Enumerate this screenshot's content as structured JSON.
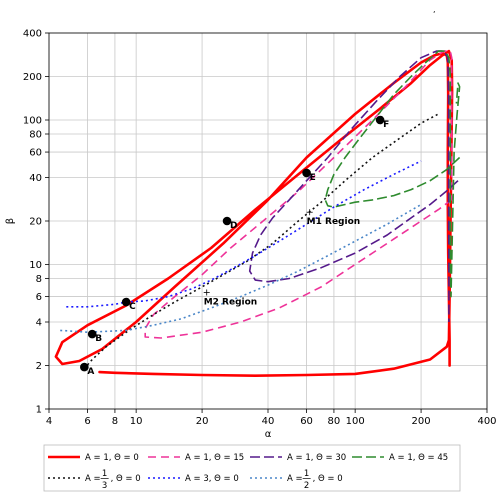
{
  "corner_mark": ",",
  "chart_data": {
    "type": "line",
    "xlabel": "α",
    "ylabel": "β",
    "xscale": "log",
    "yscale": "log",
    "xlim": [
      4,
      400
    ],
    "ylim": [
      1,
      400
    ],
    "x_ticks": [
      4,
      6,
      8,
      10,
      20,
      40,
      60,
      80,
      100,
      200,
      400
    ],
    "x_tick_labels": [
      "4",
      "6",
      "8",
      "10",
      "20",
      "40",
      "60",
      "80",
      "100",
      "200",
      "400"
    ],
    "y_ticks": [
      1,
      2,
      4,
      6,
      8,
      10,
      20,
      40,
      60,
      80,
      100,
      200,
      400
    ],
    "y_tick_labels": [
      "1",
      "2",
      "4",
      "6",
      "8",
      "10",
      "20",
      "40",
      "60",
      "80",
      "100",
      "200",
      "400"
    ],
    "grid": true,
    "legend_position": "bottom-outside",
    "series": [
      {
        "name_parts": [
          "A = 1,  Θ = 0"
        ],
        "color": "#ff0000",
        "dash": "solid",
        "width": 2.6,
        "points": [
          [
            270,
            2
          ],
          [
            270,
            3
          ],
          [
            268,
            6
          ],
          [
            266,
            12
          ],
          [
            265,
            25
          ],
          [
            265,
            60
          ],
          [
            266,
            150
          ],
          [
            265,
            250
          ],
          [
            262,
            280
          ],
          [
            250,
            290
          ],
          [
            230,
            280
          ],
          [
            200,
            250
          ],
          [
            150,
            180
          ],
          [
            100,
            110
          ],
          [
            60,
            55
          ],
          [
            40,
            28
          ],
          [
            25,
            14
          ],
          [
            15,
            7
          ],
          [
            10,
            4
          ],
          [
            7,
            2.6
          ],
          [
            5.5,
            2.15
          ],
          [
            4.6,
            2.05
          ],
          [
            4.3,
            2.3
          ],
          [
            4.6,
            2.9
          ],
          [
            6,
            3.8
          ],
          [
            9,
            5.2
          ],
          [
            14,
            8
          ],
          [
            22,
            13
          ],
          [
            35,
            24
          ],
          [
            55,
            42
          ],
          [
            85,
            72
          ],
          [
            130,
            120
          ],
          [
            180,
            180
          ],
          [
            220,
            240
          ],
          [
            250,
            280
          ],
          [
            268,
            300
          ],
          [
            276,
            260
          ],
          [
            277,
            160
          ],
          [
            275,
            60
          ],
          [
            272,
            15
          ],
          [
            270,
            6
          ],
          [
            268,
            3
          ],
          [
            262,
            2.7
          ],
          [
            220,
            2.2
          ],
          [
            150,
            1.9
          ],
          [
            100,
            1.75
          ],
          [
            60,
            1.72
          ],
          [
            35,
            1.7
          ],
          [
            20,
            1.72
          ],
          [
            12,
            1.75
          ],
          [
            8,
            1.78
          ],
          [
            6.8,
            1.8
          ]
        ]
      },
      {
        "name_parts": [
          "A = 1,  Θ = 15"
        ],
        "color": "#ee3399",
        "dash": "8,5",
        "width": 1.6,
        "points": [
          [
            275,
            28
          ],
          [
            240,
            24
          ],
          [
            200,
            20
          ],
          [
            150,
            15
          ],
          [
            100,
            10
          ],
          [
            70,
            7
          ],
          [
            45,
            5
          ],
          [
            30,
            4
          ],
          [
            20,
            3.4
          ],
          [
            13,
            3.1
          ],
          [
            11,
            3.15
          ],
          [
            11,
            3.6
          ],
          [
            12,
            4.5
          ],
          [
            15,
            6
          ],
          [
            20,
            8.5
          ],
          [
            27,
            13
          ],
          [
            38,
            20
          ],
          [
            55,
            32
          ],
          [
            80,
            55
          ],
          [
            120,
            100
          ],
          [
            170,
            170
          ],
          [
            220,
            260
          ],
          [
            255,
            300
          ],
          [
            272,
            300
          ],
          [
            276,
            270
          ],
          [
            276,
            200
          ],
          [
            276,
            120
          ],
          [
            276,
            50
          ],
          [
            276,
            28
          ]
        ]
      },
      {
        "name_parts": [
          "A = 1,  Θ = 30"
        ],
        "color": "#551a8b",
        "dash": "10,4",
        "width": 1.6,
        "points": [
          [
            295,
            38
          ],
          [
            260,
            32
          ],
          [
            220,
            26
          ],
          [
            180,
            21
          ],
          [
            140,
            16
          ],
          [
            100,
            12
          ],
          [
            70,
            9.5
          ],
          [
            50,
            8
          ],
          [
            40,
            7.6
          ],
          [
            35,
            7.8
          ],
          [
            33,
            9
          ],
          [
            34,
            12
          ],
          [
            37,
            16
          ],
          [
            42,
            21
          ],
          [
            50,
            28
          ],
          [
            60,
            38
          ],
          [
            75,
            55
          ],
          [
            95,
            85
          ],
          [
            125,
            135
          ],
          [
            160,
            200
          ],
          [
            200,
            270
          ],
          [
            235,
            300
          ],
          [
            255,
            300
          ],
          [
            264,
            270
          ],
          [
            266,
            210
          ],
          [
            267,
            140
          ],
          [
            267,
            70
          ],
          [
            267,
            30
          ],
          [
            268,
            10
          ],
          [
            268,
            4
          ]
        ]
      },
      {
        "name_parts": [
          "A = 1,  Θ = 45"
        ],
        "color": "#2e8b2e",
        "dash": "10,4",
        "width": 1.6,
        "points": [
          [
            300,
            55
          ],
          [
            260,
            45
          ],
          [
            220,
            38
          ],
          [
            180,
            33
          ],
          [
            150,
            30
          ],
          [
            120,
            28
          ],
          [
            100,
            27
          ],
          [
            90,
            26
          ],
          [
            80,
            25
          ],
          [
            75,
            25.5
          ],
          [
            73,
            28
          ],
          [
            75,
            33
          ],
          [
            80,
            42
          ],
          [
            90,
            55
          ],
          [
            105,
            75
          ],
          [
            125,
            105
          ],
          [
            150,
            150
          ],
          [
            180,
            200
          ],
          [
            210,
            250
          ],
          [
            240,
            300
          ],
          [
            258,
            300
          ],
          [
            268,
            270
          ],
          [
            272,
            200
          ],
          [
            272,
            120
          ],
          [
            272,
            60
          ],
          [
            272,
            25
          ],
          [
            272,
            10
          ],
          [
            274,
            6
          ],
          [
            283,
            60
          ],
          [
            292,
            110
          ],
          [
            300,
            170
          ],
          [
            295,
            180
          ],
          [
            290,
            130
          ]
        ]
      },
      {
        "name_parts": [
          "A = ",
          {
            "num": "1",
            "den": "3"
          },
          ",  Θ = 0"
        ],
        "color": "#111111",
        "dash": "2,3",
        "width": 1.6,
        "points": [
          [
            5.8,
            1.9
          ],
          [
            6.3,
            2.2
          ],
          [
            7.3,
            2.7
          ],
          [
            9.5,
            3.6
          ],
          [
            12,
            4.5
          ],
          [
            15,
            5.5
          ],
          [
            19,
            6.7
          ],
          [
            24,
            8.2
          ],
          [
            32,
            10.5
          ],
          [
            42,
            14
          ],
          [
            55,
            20
          ],
          [
            70,
            27
          ],
          [
            90,
            38
          ],
          [
            120,
            55
          ],
          [
            160,
            75
          ],
          [
            200,
            95
          ],
          [
            240,
            110
          ]
        ]
      },
      {
        "name_parts": [
          "A = 3,  Θ = 0"
        ],
        "color": "#1a1aff",
        "dash": "2,3",
        "width": 1.6,
        "points": [
          [
            4.8,
            5.1
          ],
          [
            6,
            5.1
          ],
          [
            8,
            5.3
          ],
          [
            9,
            5.5
          ],
          [
            11,
            5.6
          ],
          [
            14,
            6
          ],
          [
            18,
            6.8
          ],
          [
            22,
            7.8
          ],
          [
            28,
            9.5
          ],
          [
            35,
            11.5
          ],
          [
            45,
            14.5
          ],
          [
            60,
            19
          ],
          [
            80,
            25
          ],
          [
            110,
            33
          ],
          [
            150,
            42
          ],
          [
            200,
            52
          ]
        ]
      },
      {
        "name_parts": [
          "A = ",
          {
            "num": "1",
            "den": "2"
          },
          ",  Θ = 0"
        ],
        "color": "#4a86c8",
        "dash": "2,3",
        "width": 1.6,
        "points": [
          [
            4.5,
            3.5
          ],
          [
            6,
            3.4
          ],
          [
            9,
            3.5
          ],
          [
            12,
            3.8
          ],
          [
            16,
            4.2
          ],
          [
            22,
            5
          ],
          [
            30,
            6
          ],
          [
            40,
            7.2
          ],
          [
            55,
            9
          ],
          [
            75,
            11.5
          ],
          [
            100,
            14.5
          ],
          [
            140,
            19
          ],
          [
            200,
            26
          ]
        ]
      }
    ],
    "points": [
      {
        "label": "A",
        "x": 5.8,
        "y": 1.95
      },
      {
        "label": "B",
        "x": 6.3,
        "y": 3.3
      },
      {
        "label": "C",
        "x": 9.0,
        "y": 5.5
      },
      {
        "label": "D",
        "x": 26,
        "y": 20
      },
      {
        "label": "E",
        "x": 60,
        "y": 43
      },
      {
        "label": "F",
        "x": 130,
        "y": 100
      }
    ],
    "annotations": [
      {
        "text": "M1 Region",
        "x": 62,
        "y": 23
      },
      {
        "text": "M2 Region",
        "x": 21,
        "y": 6.4
      }
    ]
  }
}
